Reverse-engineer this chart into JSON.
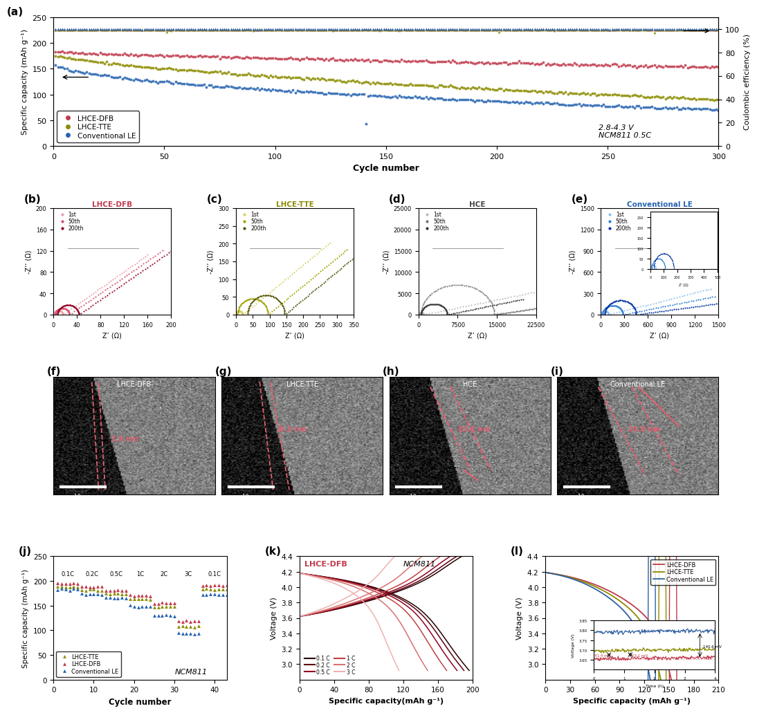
{
  "fig_width": 10.8,
  "fig_height": 10.19,
  "colors": {
    "red": "#c0394b",
    "olive": "#8b8b00",
    "blue": "#2563b0",
    "gray": "#555555"
  },
  "panel_a": {
    "xlabel": "Cycle number",
    "ylabel_left": "Specific capacity (mAh g⁻¹)",
    "ylabel_right": "Coulombic efficiency (%)",
    "annotation": "2.8-4.3 V\nNCM811 0.5C"
  },
  "panel_b": {
    "title": "LHCE-DFB",
    "title_color": "#c0394b",
    "xlabel": "Z’ (Ω)",
    "ylabel": "-Z’’ (Ω)"
  },
  "panel_c": {
    "title": "LHCE-TTE",
    "title_color": "#8b8b00",
    "xlabel": "Z’ (Ω)",
    "ylabel": "-Z’’ (Ω)"
  },
  "panel_d": {
    "title": "HCE",
    "title_color": "#555555",
    "xlabel": "Z’ (Ω)",
    "ylabel": "-Z’’ (Ω)"
  },
  "panel_e": {
    "title": "Conventional LE",
    "title_color": "#2563b0",
    "xlabel": "Z’ (Ω)",
    "ylabel": "-Z’’ (Ω)"
  },
  "panel_j": {
    "xlabel": "Cycle number",
    "ylabel": "Specific capacity (mAh g⁻¹)"
  },
  "panel_k": {
    "xlabel": "Specific capacity(mAh g⁻¹)",
    "ylabel": "Voltage (V)"
  },
  "panel_l": {
    "xlabel": "Specific capacity (mAh g⁻¹)",
    "ylabel": "Voltage (V)"
  }
}
